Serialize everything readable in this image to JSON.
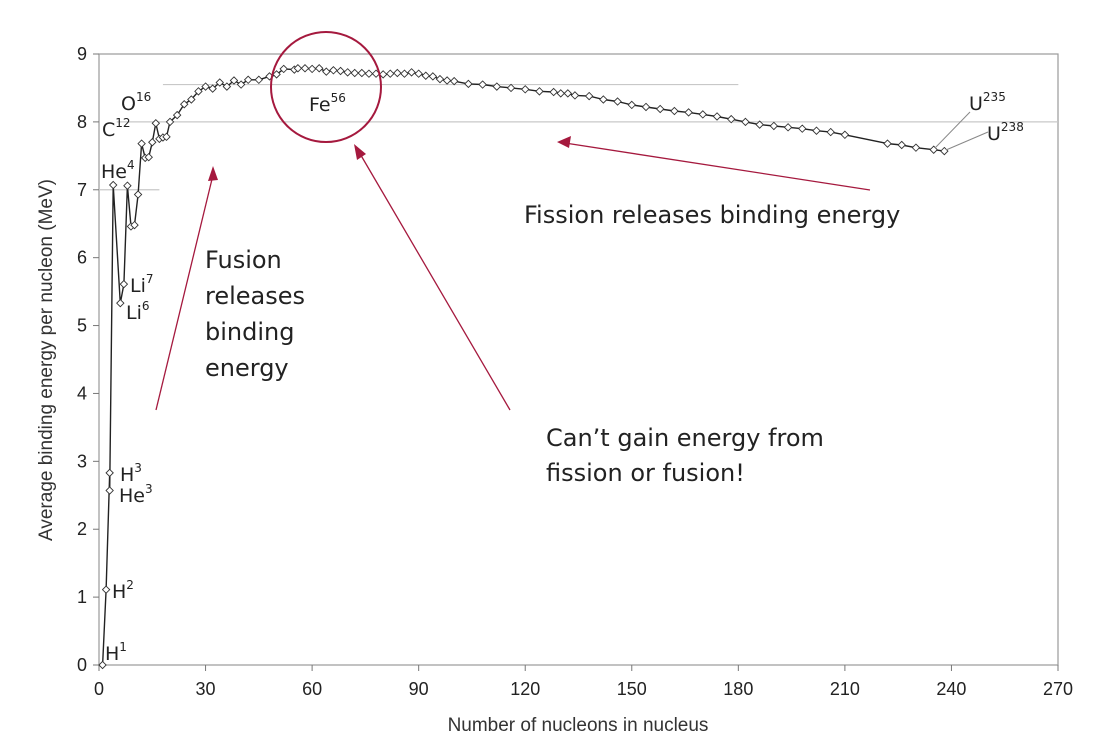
{
  "chart_data": {
    "type": "line",
    "xlabel": "Number of nucleons in nucleus",
    "ylabel": "Average binding energy per nucleon (MeV)",
    "xlim": [
      0,
      270
    ],
    "ylim": [
      0,
      9
    ],
    "x_ticks": [
      0,
      30,
      60,
      90,
      120,
      150,
      180,
      210,
      240,
      270
    ],
    "y_ticks": [
      0,
      1,
      2,
      3,
      4,
      5,
      6,
      7,
      8,
      9
    ],
    "grid": false,
    "reference_lines": [
      {
        "y": 7,
        "x_range": [
          0,
          17
        ]
      },
      {
        "y": 8,
        "x_range": [
          5,
          270
        ]
      },
      {
        "y": 8.55,
        "x_range": [
          18,
          180
        ]
      }
    ],
    "series": [
      {
        "x": [
          1,
          2,
          3,
          3,
          4,
          6,
          7,
          8,
          9,
          10,
          11,
          12,
          13,
          14,
          15,
          16,
          17,
          18,
          19,
          20,
          22,
          24,
          26,
          28,
          30,
          32,
          34,
          36,
          38,
          40,
          42,
          45,
          48,
          50,
          52,
          55,
          56,
          58,
          60,
          62,
          64,
          66,
          68,
          70,
          72,
          74,
          76,
          78,
          80,
          82,
          84,
          86,
          88,
          90,
          92,
          94,
          96,
          98,
          100,
          104,
          108,
          112,
          116,
          120,
          124,
          128,
          130,
          132,
          134,
          138,
          142,
          146,
          150,
          154,
          158,
          162,
          166,
          170,
          174,
          178,
          182,
          186,
          190,
          194,
          198,
          202,
          206,
          210,
          222,
          226,
          230,
          235,
          238
        ],
        "y": [
          0,
          1.11,
          2.83,
          2.57,
          7.07,
          5.33,
          5.61,
          7.06,
          6.46,
          6.48,
          6.93,
          7.68,
          7.47,
          7.48,
          7.7,
          7.98,
          7.75,
          7.77,
          7.78,
          8.0,
          8.1,
          8.26,
          8.33,
          8.45,
          8.52,
          8.49,
          8.58,
          8.52,
          8.61,
          8.55,
          8.62,
          8.62,
          8.67,
          8.7,
          8.78,
          8.77,
          8.79,
          8.79,
          8.78,
          8.79,
          8.74,
          8.76,
          8.75,
          8.73,
          8.72,
          8.72,
          8.71,
          8.71,
          8.7,
          8.71,
          8.72,
          8.71,
          8.73,
          8.71,
          8.68,
          8.67,
          8.63,
          8.61,
          8.6,
          8.56,
          8.55,
          8.52,
          8.5,
          8.48,
          8.45,
          8.44,
          8.42,
          8.42,
          8.39,
          8.38,
          8.33,
          8.3,
          8.25,
          8.22,
          8.19,
          8.16,
          8.14,
          8.11,
          8.08,
          8.04,
          8.0,
          7.96,
          7.94,
          7.92,
          7.9,
          7.87,
          7.85,
          7.81,
          7.68,
          7.66,
          7.62,
          7.59,
          7.57
        ]
      }
    ],
    "point_labels": [
      {
        "base": "H",
        "sup": "1"
      },
      {
        "base": "H",
        "sup": "2"
      },
      {
        "base": "H",
        "sup": "3"
      },
      {
        "base": "He",
        "sup": "3"
      },
      {
        "base": "He",
        "sup": "4"
      },
      {
        "base": "Li",
        "sup": "7"
      },
      {
        "base": "Li",
        "sup": "6"
      },
      {
        "base": "C",
        "sup": "12"
      },
      {
        "base": "O",
        "sup": "16"
      },
      {
        "base": "Fe",
        "sup": "56"
      },
      {
        "base": "U",
        "sup": "235"
      },
      {
        "base": "U",
        "sup": "238"
      }
    ],
    "annotations": {
      "fusion": [
        "Fusion",
        "releases",
        "binding",
        "energy"
      ],
      "fission": "Fission releases binding energy",
      "cant_gain": [
        "Can’t gain energy from",
        "fission or fusion!"
      ]
    }
  },
  "colors": {
    "accent": "#a5193e",
    "line": "#222222",
    "marker_fill": "#ffffff",
    "frame": "#9a9a9a",
    "reference_line": "#c8c8c8"
  }
}
